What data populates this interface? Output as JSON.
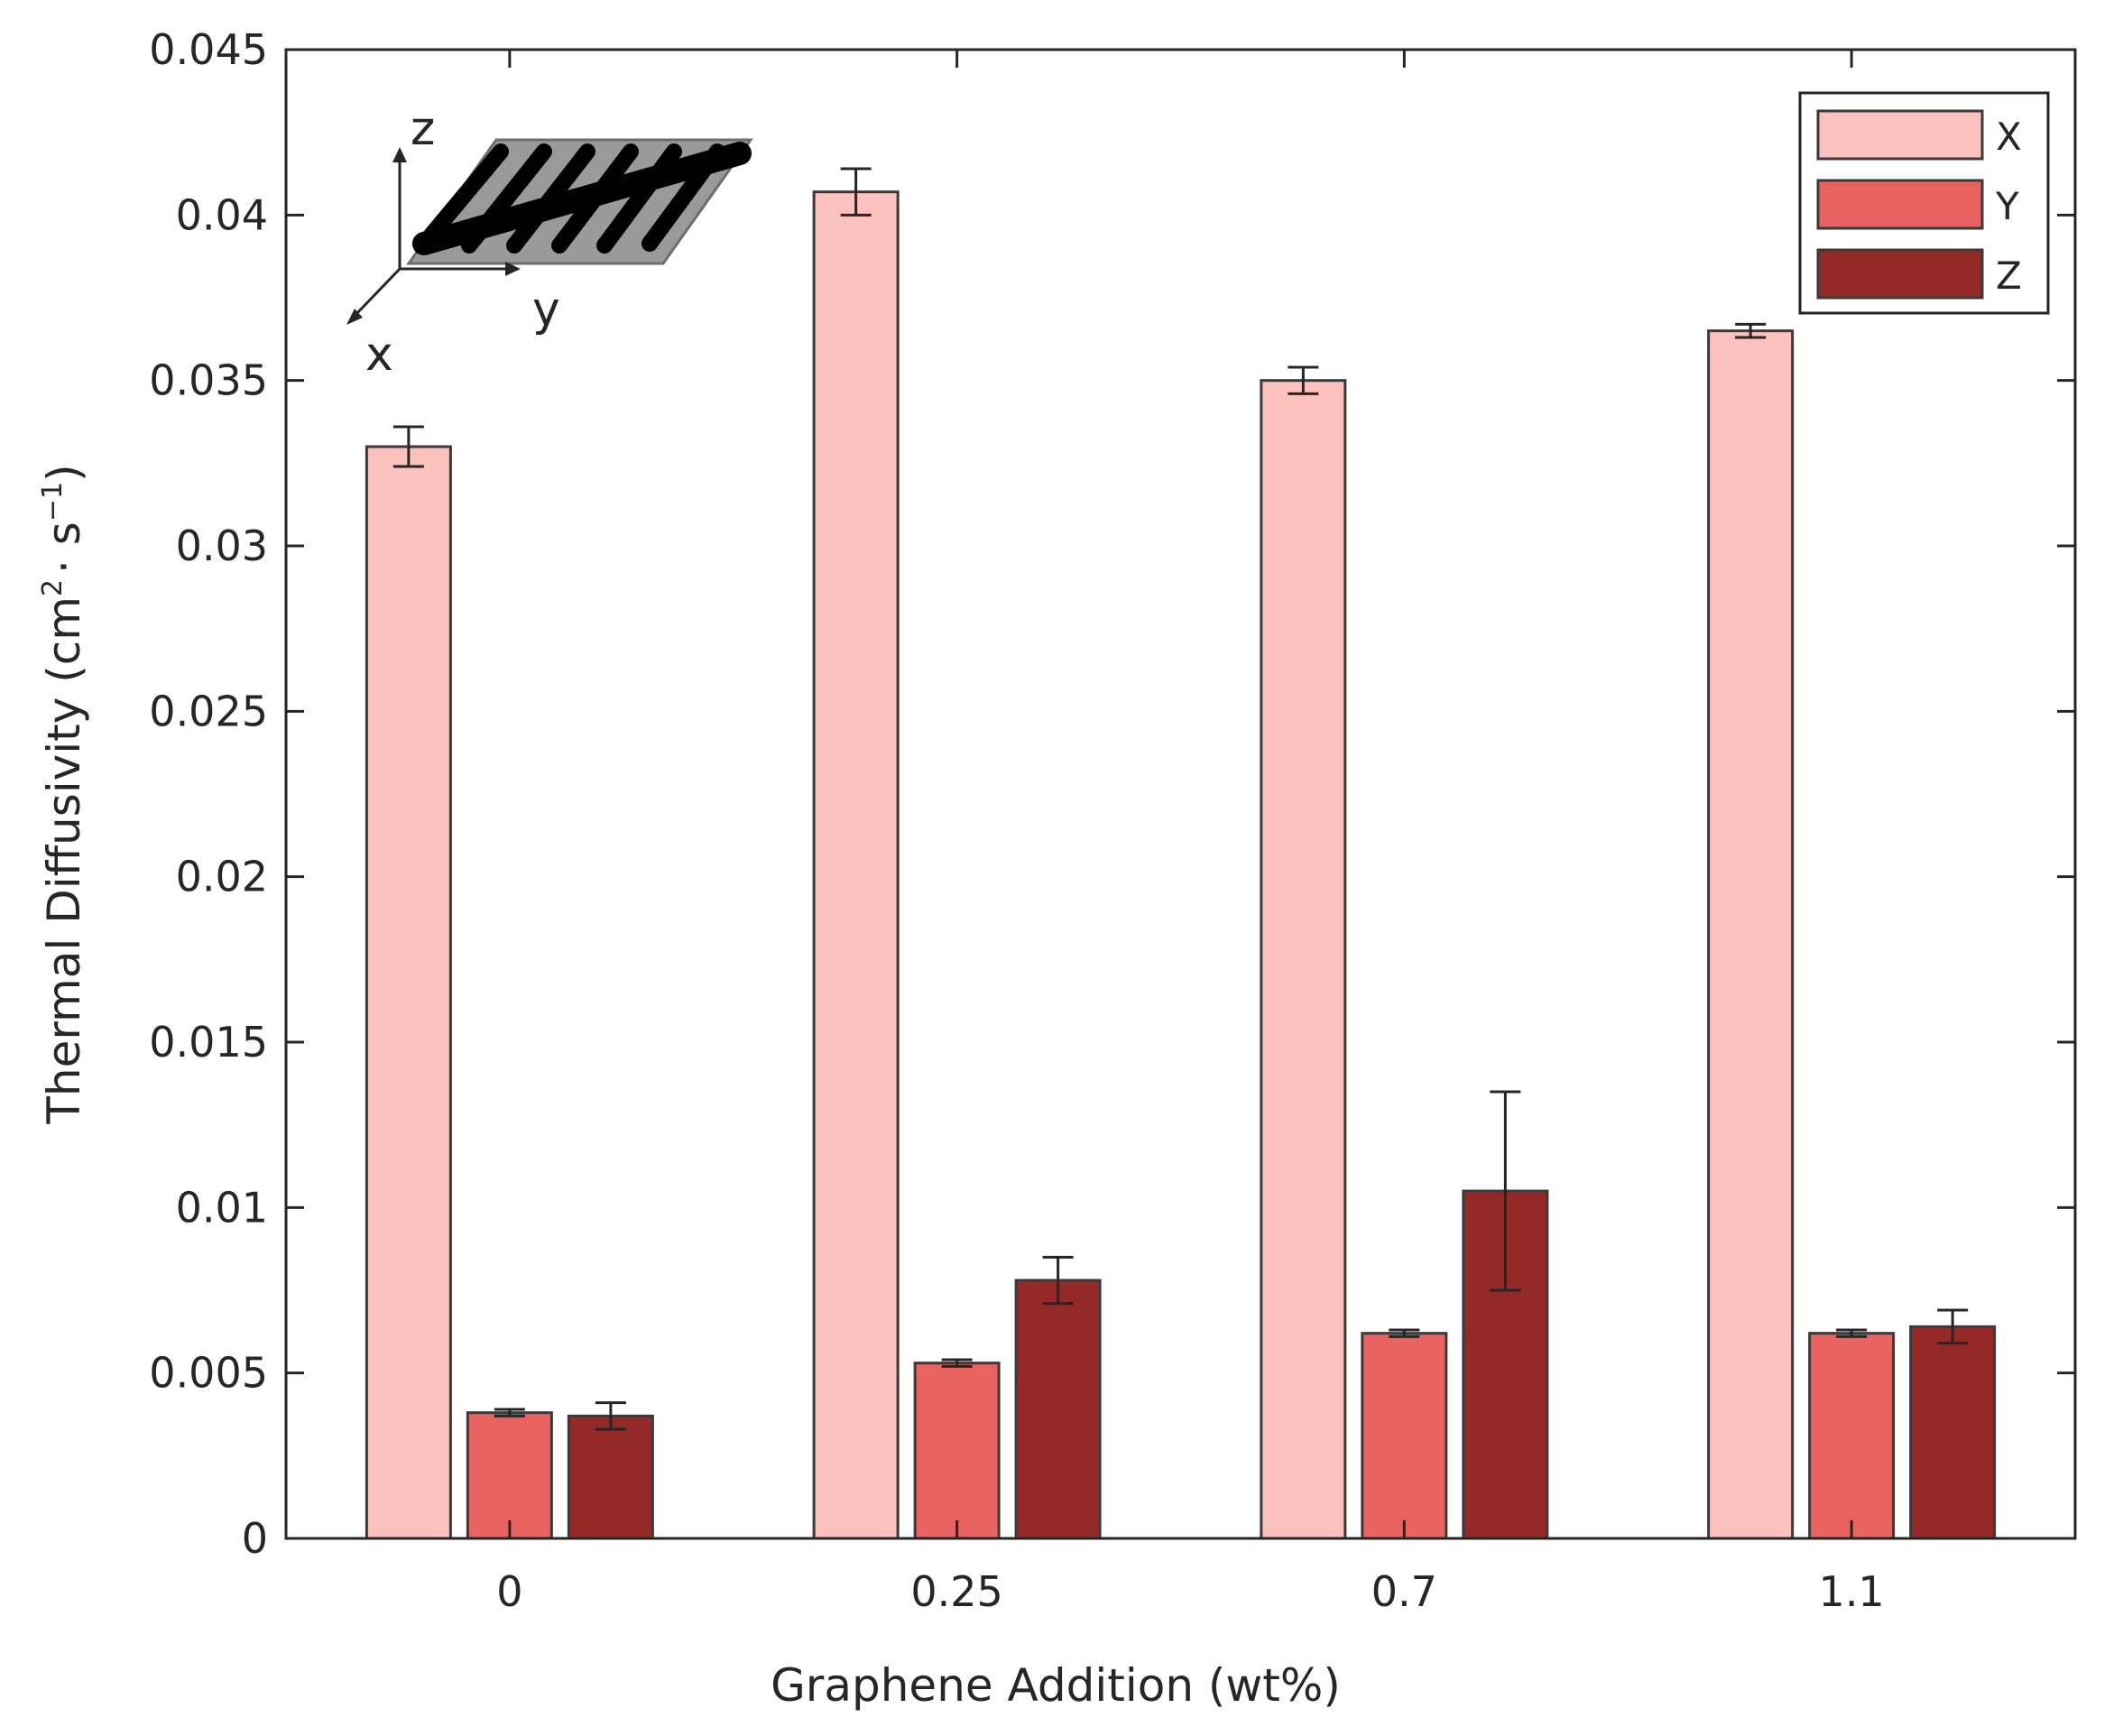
{
  "chart_data": {
    "type": "bar",
    "title": "",
    "xlabel": "Graphene Addition (wt%)",
    "ylabel": {
      "main": "Thermal Diffusivity (cm",
      "sup1": "2",
      "mid": "· s",
      "sup2": "−1",
      "end": ")"
    },
    "categories": [
      "0",
      "0.25",
      "0.7",
      "1.1"
    ],
    "series": [
      {
        "name": "X",
        "color": "#fcc0bd",
        "values": [
          0.033,
          0.0407,
          0.035,
          0.0365
        ],
        "errors": [
          0.0006,
          0.0007,
          0.0004,
          0.0002
        ]
      },
      {
        "name": "Y",
        "color": "#e8625f",
        "values": [
          0.0038,
          0.0053,
          0.0062,
          0.0062
        ],
        "errors": [
          0.0001,
          0.0001,
          0.0001,
          0.0001
        ]
      },
      {
        "name": "Z",
        "color": "#932a28",
        "values": [
          0.0037,
          0.0078,
          0.0105,
          0.0064
        ],
        "errors": [
          0.0004,
          0.0007,
          0.003,
          0.0005
        ]
      }
    ],
    "ylim": [
      0,
      0.045
    ],
    "yticks": [
      0,
      0.005,
      0.01,
      0.015,
      0.02,
      0.025,
      0.03,
      0.035,
      0.04,
      0.045
    ],
    "ytick_labels": [
      "0",
      "0.005",
      "0.01",
      "0.015",
      "0.02",
      "0.025",
      "0.03",
      "0.035",
      "0.04",
      "0.045"
    ],
    "grid": false,
    "legend_position": "top-right",
    "inset_axes_labels": {
      "z": "z",
      "y": "y",
      "x": "x"
    }
  }
}
